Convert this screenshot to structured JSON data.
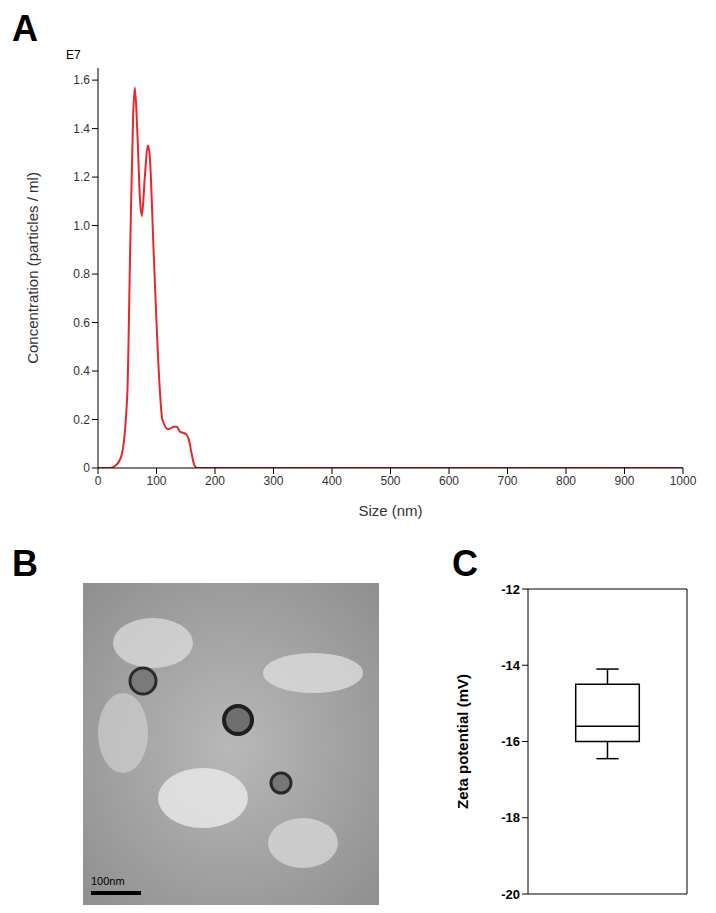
{
  "chart_data": [
    {
      "panel": "A",
      "type": "line",
      "annotation": "E7",
      "x_label": "Size (nm)",
      "y_label": "Concentration (particles / ml)",
      "x": [
        0,
        20,
        30,
        40,
        50,
        55,
        60,
        63,
        67,
        72,
        75,
        80,
        85,
        88,
        95,
        100,
        105,
        110,
        120,
        130,
        135,
        140,
        150,
        155,
        160,
        165,
        170,
        200,
        1000
      ],
      "values": [
        0,
        0,
        0.01,
        0.05,
        0.3,
        0.9,
        1.45,
        1.57,
        1.4,
        1.1,
        1.04,
        1.2,
        1.33,
        1.3,
        0.9,
        0.6,
        0.35,
        0.2,
        0.16,
        0.17,
        0.17,
        0.15,
        0.14,
        0.12,
        0.06,
        0.01,
        0,
        0,
        0
      ],
      "color": "#e8262b",
      "xlim": [
        0,
        1000
      ],
      "xticks": [
        0,
        100,
        200,
        300,
        400,
        500,
        600,
        700,
        800,
        900,
        1000
      ],
      "ylim": [
        0,
        1.65
      ],
      "yticks": [
        0,
        0.2,
        0.4,
        0.6,
        0.8,
        {
          "value": 1,
          "label": "1.0"
        },
        1.2,
        1.4,
        1.6
      ]
    },
    {
      "panel": "B",
      "type": "image",
      "scale_bar_label": "100nm"
    },
    {
      "panel": "C",
      "type": "box",
      "y_label": "Zeta potential (mV)",
      "box": {
        "min": -16.45,
        "q1": -16.0,
        "median": -15.6,
        "q3": -14.5,
        "max": -14.1
      },
      "color": "#000000",
      "tick_labels": "y",
      "ylim": [
        -20,
        -12
      ],
      "yticks": [
        -20,
        -18,
        -16,
        -14,
        -12
      ]
    }
  ]
}
